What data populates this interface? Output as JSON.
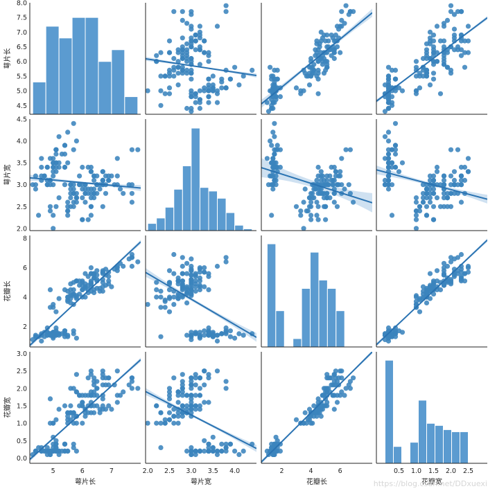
{
  "chart_data": {
    "type": "pairplot",
    "variables": [
      {
        "key": "sepal_length",
        "label": "萼片长",
        "range": [
          4.2,
          8.0
        ],
        "ticks": [
          5,
          6,
          7
        ],
        "ytick_values": [
          4.5,
          5.0,
          5.5,
          6.0,
          6.5,
          7.0,
          7.5,
          8.0
        ],
        "ytick_labels": [
          "4.5",
          "5.0",
          "5.5",
          "6.0",
          "6.5",
          "7.0",
          "7.5",
          "8.0"
        ]
      },
      {
        "key": "sepal_width",
        "label": "萼片宽",
        "range": [
          1.95,
          4.5
        ],
        "ticks": [
          2.0,
          2.5,
          3.0,
          3.5,
          4.0
        ],
        "tick_labels": [
          "2.0",
          "2.5",
          "3.0",
          "3.5",
          "4.0"
        ],
        "ytick_values": [
          2.0,
          2.5,
          3.0,
          3.5,
          4.0,
          4.5
        ],
        "ytick_labels": [
          "2.0",
          "2.5",
          "3.0",
          "3.5",
          "4.0",
          "4.5"
        ]
      },
      {
        "key": "petal_length",
        "label": "花瓣长",
        "range": [
          0.6,
          8.2
        ],
        "ticks": [
          2,
          4,
          6
        ],
        "ytick_values": [
          2,
          4,
          6,
          8
        ],
        "ytick_labels": [
          "2",
          "4",
          "6",
          "8"
        ]
      },
      {
        "key": "petal_width",
        "label": "花瓣宽",
        "range": [
          -0.15,
          3.05
        ],
        "ticks": [
          0.5,
          1.0,
          1.5,
          2.0,
          2.5
        ],
        "tick_labels": [
          "0.5",
          "1.0",
          "1.5",
          "2.0",
          "2.5"
        ],
        "ytick_values": [
          0.0,
          0.5,
          1.0,
          1.5,
          2.0,
          2.5,
          3.0
        ],
        "ytick_labels": [
          "0.0",
          "0.5",
          "1.0",
          "1.5",
          "2.0",
          "2.5",
          "3.0"
        ]
      }
    ],
    "histograms": [
      {
        "variable": "sepal_length",
        "bin_edges": [
          4.3,
          4.75,
          5.2,
          5.65,
          6.1,
          6.55,
          7.0,
          7.45,
          7.9
        ],
        "counts": [
          11,
          30,
          26,
          33,
          33,
          18,
          22,
          6
        ]
      },
      {
        "variable": "sepal_width",
        "bin_edges": [
          2.0,
          2.2,
          2.4,
          2.6,
          2.8,
          3.0,
          3.2,
          3.4,
          3.6,
          3.8,
          4.0,
          4.2,
          4.4
        ],
        "counts": [
          4,
          7,
          13,
          23,
          36,
          57,
          24,
          22,
          18,
          10,
          3,
          1
        ]
      },
      {
        "variable": "petal_length",
        "bin_edges": [
          1.0,
          1.59,
          2.18,
          2.77,
          3.36,
          3.95,
          4.54,
          5.13,
          5.72,
          6.31,
          6.9
        ],
        "counts": [
          37,
          13,
          0,
          3,
          21,
          34,
          24,
          21,
          13,
          0
        ]
      },
      {
        "variable": "petal_width",
        "bin_edges": [
          0.1,
          0.34,
          0.58,
          0.82,
          1.06,
          1.3,
          1.54,
          1.78,
          2.02,
          2.26,
          2.5
        ],
        "counts": [
          49,
          8,
          0,
          10,
          30,
          19,
          18,
          16,
          15,
          15
        ]
      }
    ],
    "regression": {
      "sepal_width~sepal_length": [
        3.418,
        -0.0618
      ],
      "petal_length~sepal_length": [
        -7.101,
        1.8584
      ],
      "petal_width~sepal_length": [
        -3.2,
        0.7529
      ],
      "sepal_length~sepal_width": [
        6.526,
        -0.2234
      ],
      "petal_length~sepal_width": [
        9.063,
        -1.7352
      ],
      "petal_width~sepal_width": [
        3.157,
        -0.6403
      ],
      "sepal_length~petal_length": [
        4.307,
        0.4089
      ],
      "sepal_width~petal_length": [
        3.454,
        -0.1057
      ],
      "petal_width~petal_length": [
        -0.363,
        0.4158
      ],
      "sepal_length~petal_width": [
        4.778,
        0.8886
      ],
      "sepal_width~petal_width": [
        3.308,
        -0.2096
      ],
      "petal_length~petal_width": [
        1.084,
        2.2299
      ]
    },
    "ci_half_width": [
      [
        0,
        0.07,
        0.14,
        0.06
      ],
      [
        0.07,
        0,
        0.22,
        0.1
      ],
      [
        0.14,
        0.3,
        0,
        0.12
      ],
      [
        0.06,
        0.1,
        0.05,
        0
      ]
    ],
    "iris": [
      [
        5.1,
        3.5,
        1.4,
        0.2
      ],
      [
        4.9,
        3.0,
        1.4,
        0.2
      ],
      [
        4.7,
        3.2,
        1.3,
        0.2
      ],
      [
        4.6,
        3.1,
        1.5,
        0.2
      ],
      [
        5.0,
        3.6,
        1.4,
        0.2
      ],
      [
        5.4,
        3.9,
        1.7,
        0.4
      ],
      [
        4.6,
        3.4,
        1.4,
        0.3
      ],
      [
        5.0,
        3.4,
        1.5,
        0.2
      ],
      [
        4.4,
        2.9,
        1.4,
        0.2
      ],
      [
        4.9,
        3.1,
        1.5,
        0.1
      ],
      [
        5.4,
        3.7,
        1.5,
        0.2
      ],
      [
        4.8,
        3.4,
        1.6,
        0.2
      ],
      [
        4.8,
        3.0,
        1.4,
        0.1
      ],
      [
        4.3,
        3.0,
        1.1,
        0.1
      ],
      [
        5.8,
        4.0,
        1.2,
        0.2
      ],
      [
        5.7,
        4.4,
        1.5,
        0.4
      ],
      [
        5.4,
        3.9,
        1.3,
        0.4
      ],
      [
        5.1,
        3.5,
        1.4,
        0.3
      ],
      [
        5.7,
        3.8,
        1.7,
        0.3
      ],
      [
        5.1,
        3.8,
        1.5,
        0.3
      ],
      [
        5.4,
        3.4,
        1.7,
        0.2
      ],
      [
        5.1,
        3.7,
        1.5,
        0.4
      ],
      [
        4.6,
        3.6,
        1.0,
        0.2
      ],
      [
        5.1,
        3.3,
        1.7,
        0.5
      ],
      [
        4.8,
        3.4,
        1.9,
        0.2
      ],
      [
        5.0,
        3.0,
        1.6,
        0.2
      ],
      [
        5.0,
        3.4,
        1.6,
        0.4
      ],
      [
        5.2,
        3.5,
        1.5,
        0.2
      ],
      [
        5.2,
        3.4,
        1.4,
        0.2
      ],
      [
        4.7,
        3.2,
        1.6,
        0.2
      ],
      [
        4.8,
        3.1,
        1.6,
        0.2
      ],
      [
        5.4,
        3.4,
        1.5,
        0.4
      ],
      [
        5.2,
        4.1,
        1.5,
        0.1
      ],
      [
        5.5,
        4.2,
        1.4,
        0.2
      ],
      [
        4.9,
        3.1,
        1.5,
        0.2
      ],
      [
        5.0,
        3.2,
        1.2,
        0.2
      ],
      [
        5.5,
        3.5,
        1.3,
        0.2
      ],
      [
        4.9,
        3.6,
        1.4,
        0.1
      ],
      [
        4.4,
        3.0,
        1.3,
        0.2
      ],
      [
        5.1,
        3.4,
        1.5,
        0.2
      ],
      [
        5.0,
        3.5,
        1.3,
        0.3
      ],
      [
        4.5,
        2.3,
        1.3,
        0.3
      ],
      [
        4.4,
        3.2,
        1.3,
        0.2
      ],
      [
        5.0,
        3.5,
        1.6,
        0.6
      ],
      [
        5.1,
        3.8,
        1.9,
        0.4
      ],
      [
        4.8,
        3.0,
        1.4,
        0.3
      ],
      [
        5.1,
        3.8,
        1.6,
        0.2
      ],
      [
        4.6,
        3.2,
        1.4,
        0.2
      ],
      [
        5.3,
        3.7,
        1.5,
        0.2
      ],
      [
        5.0,
        3.3,
        1.4,
        0.2
      ],
      [
        7.0,
        3.2,
        4.7,
        1.4
      ],
      [
        6.4,
        3.2,
        4.5,
        1.5
      ],
      [
        6.9,
        3.1,
        4.9,
        1.5
      ],
      [
        5.5,
        2.3,
        4.0,
        1.3
      ],
      [
        6.5,
        2.8,
        4.6,
        1.5
      ],
      [
        5.7,
        2.8,
        4.5,
        1.3
      ],
      [
        6.3,
        3.3,
        4.7,
        1.6
      ],
      [
        4.9,
        2.4,
        3.3,
        1.0
      ],
      [
        6.6,
        2.9,
        4.6,
        1.3
      ],
      [
        5.2,
        2.7,
        3.9,
        1.4
      ],
      [
        5.0,
        2.0,
        3.5,
        1.0
      ],
      [
        5.9,
        3.0,
        4.2,
        1.5
      ],
      [
        6.0,
        2.2,
        4.0,
        1.0
      ],
      [
        6.1,
        2.9,
        4.7,
        1.4
      ],
      [
        5.6,
        2.9,
        3.6,
        1.3
      ],
      [
        6.7,
        3.1,
        4.4,
        1.4
      ],
      [
        5.6,
        3.0,
        4.5,
        1.5
      ],
      [
        5.8,
        2.7,
        4.1,
        1.0
      ],
      [
        6.2,
        2.2,
        4.5,
        1.5
      ],
      [
        5.6,
        2.5,
        3.9,
        1.1
      ],
      [
        5.9,
        3.2,
        4.8,
        1.8
      ],
      [
        6.1,
        2.8,
        4.0,
        1.3
      ],
      [
        6.3,
        2.5,
        4.9,
        1.5
      ],
      [
        6.1,
        2.8,
        4.7,
        1.2
      ],
      [
        6.4,
        2.9,
        4.3,
        1.3
      ],
      [
        6.6,
        3.0,
        4.4,
        1.4
      ],
      [
        6.8,
        2.8,
        4.8,
        1.4
      ],
      [
        6.7,
        3.0,
        5.0,
        1.7
      ],
      [
        6.0,
        2.9,
        4.5,
        1.5
      ],
      [
        5.7,
        2.6,
        3.5,
        1.0
      ],
      [
        5.5,
        2.4,
        3.8,
        1.1
      ],
      [
        5.5,
        2.4,
        3.7,
        1.0
      ],
      [
        5.8,
        2.7,
        3.9,
        1.2
      ],
      [
        6.0,
        2.7,
        5.1,
        1.6
      ],
      [
        5.4,
        3.0,
        4.5,
        1.5
      ],
      [
        6.0,
        3.4,
        4.5,
        1.6
      ],
      [
        6.7,
        3.1,
        4.7,
        1.5
      ],
      [
        6.3,
        2.3,
        4.4,
        1.3
      ],
      [
        5.6,
        3.0,
        4.1,
        1.3
      ],
      [
        5.5,
        2.5,
        4.0,
        1.3
      ],
      [
        5.5,
        2.6,
        4.4,
        1.2
      ],
      [
        6.1,
        3.0,
        4.6,
        1.4
      ],
      [
        5.8,
        2.6,
        4.0,
        1.2
      ],
      [
        5.0,
        2.3,
        3.3,
        1.0
      ],
      [
        5.6,
        2.7,
        4.2,
        1.3
      ],
      [
        5.7,
        3.0,
        4.2,
        1.2
      ],
      [
        5.7,
        2.9,
        4.2,
        1.3
      ],
      [
        6.2,
        2.9,
        4.3,
        1.3
      ],
      [
        5.1,
        2.5,
        3.0,
        1.1
      ],
      [
        5.7,
        2.8,
        4.1,
        1.3
      ],
      [
        6.3,
        3.3,
        6.0,
        2.5
      ],
      [
        5.8,
        2.7,
        5.1,
        1.9
      ],
      [
        7.1,
        3.0,
        5.9,
        2.1
      ],
      [
        6.3,
        2.9,
        5.6,
        1.8
      ],
      [
        6.5,
        3.0,
        5.8,
        2.2
      ],
      [
        7.6,
        3.0,
        6.6,
        2.1
      ],
      [
        4.9,
        2.5,
        4.5,
        1.7
      ],
      [
        7.3,
        2.9,
        6.3,
        1.8
      ],
      [
        6.7,
        2.5,
        5.8,
        1.8
      ],
      [
        7.2,
        3.6,
        6.1,
        2.5
      ],
      [
        6.5,
        3.2,
        5.1,
        2.0
      ],
      [
        6.4,
        2.7,
        5.3,
        1.9
      ],
      [
        6.8,
        3.0,
        5.5,
        2.1
      ],
      [
        5.7,
        2.5,
        5.0,
        2.0
      ],
      [
        5.8,
        2.8,
        5.1,
        2.4
      ],
      [
        6.4,
        3.2,
        5.3,
        2.3
      ],
      [
        6.5,
        3.0,
        5.5,
        1.8
      ],
      [
        7.7,
        3.8,
        6.7,
        2.2
      ],
      [
        7.7,
        2.6,
        6.9,
        2.3
      ],
      [
        6.0,
        2.2,
        5.0,
        1.5
      ],
      [
        6.9,
        3.2,
        5.7,
        2.3
      ],
      [
        5.6,
        2.8,
        4.9,
        2.0
      ],
      [
        7.7,
        2.8,
        6.7,
        2.0
      ],
      [
        6.3,
        2.7,
        4.9,
        1.8
      ],
      [
        6.7,
        3.3,
        5.7,
        2.1
      ],
      [
        7.2,
        3.2,
        6.0,
        1.8
      ],
      [
        6.2,
        2.8,
        4.8,
        1.8
      ],
      [
        6.1,
        3.0,
        4.9,
        1.8
      ],
      [
        6.4,
        2.8,
        5.6,
        2.1
      ],
      [
        7.2,
        3.0,
        5.8,
        1.6
      ],
      [
        7.4,
        2.8,
        6.1,
        1.9
      ],
      [
        7.9,
        3.8,
        6.4,
        2.0
      ],
      [
        6.4,
        2.8,
        5.6,
        2.2
      ],
      [
        6.3,
        2.8,
        5.1,
        1.5
      ],
      [
        6.1,
        2.6,
        5.6,
        1.4
      ],
      [
        7.7,
        3.0,
        6.1,
        2.3
      ],
      [
        6.3,
        3.4,
        5.6,
        2.4
      ],
      [
        6.4,
        3.1,
        5.5,
        1.8
      ],
      [
        6.0,
        3.0,
        4.8,
        1.8
      ],
      [
        6.9,
        3.1,
        5.4,
        2.1
      ],
      [
        6.7,
        3.1,
        5.6,
        2.4
      ],
      [
        6.9,
        3.1,
        5.1,
        2.3
      ],
      [
        5.8,
        2.7,
        5.1,
        1.9
      ],
      [
        6.8,
        3.2,
        5.9,
        2.3
      ],
      [
        6.7,
        3.3,
        5.7,
        2.5
      ],
      [
        6.7,
        3.0,
        5.2,
        2.3
      ],
      [
        6.3,
        2.5,
        5.0,
        1.9
      ],
      [
        6.5,
        3.0,
        5.2,
        2.0
      ],
      [
        6.2,
        3.4,
        5.4,
        2.3
      ],
      [
        5.9,
        3.0,
        5.1,
        1.8
      ]
    ]
  },
  "colors": {
    "scatter": "#3b84bd",
    "bar": "#5b9bd0",
    "bar_edge": "#ffffff",
    "line": "#2a73b2",
    "band": "#c7dcee",
    "spine": "#222222"
  },
  "watermark": "https://blog.csdn.net/DDxuexi"
}
